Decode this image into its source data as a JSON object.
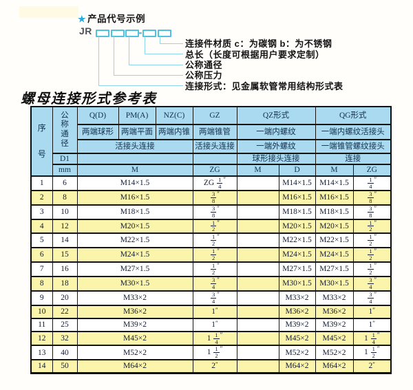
{
  "diagram": {
    "star": "★",
    "title": "产品代号示例",
    "prefix": "JR",
    "labels": [
      "连接件材质  c：为碳钢  b：为不锈钢",
      "总长（长度可根据用户要求定制）",
      "公称通径",
      "公称压力",
      "连接形式：见金属软管常用结构形式表"
    ]
  },
  "table_title": "螺母连接形式参考表",
  "table": {
    "header": {
      "seq": "序号",
      "dn": "公称通径",
      "d1": "D1",
      "mm": "mm",
      "q": "Q(D)",
      "q_sub": "两端球形",
      "pm": "PM(A)",
      "pm_sub": "两端平面",
      "nz": "NZ(C)",
      "nz_sub": "两端内锥",
      "group_qpmnz_row3": "活接头连接",
      "gz": "GZ",
      "gz_sub": "两端锥管",
      "gz_row3": "活接头连接",
      "qz": "QZ形式",
      "qz_sub": "一端内螺纹",
      "qz_row3": "一端外螺纹",
      "qz_row4": "球形接头连接",
      "qg": "QG形式",
      "qg_sub": "一端内螺纹活接头",
      "qg_row3": "一端锥管螺纹接头",
      "qg_row4": "连接",
      "m1": "M",
      "zg1": "ZG",
      "m2": "M",
      "d2": "D",
      "m3": "M",
      "zg2": "ZG"
    },
    "rows": [
      {
        "seq": "1",
        "mm": "6",
        "m": "M14×1.5",
        "zg": "ZG 1/4″",
        "qz_m": "",
        "qz_d": "M14×1.5",
        "qg_m": "M14×1.5",
        "qg_zg": "1/4″"
      },
      {
        "seq": "2",
        "mm": "8",
        "m": "M16×1.5",
        "zg": "3/8″",
        "qz_m": "",
        "qz_d": "M16×1.5",
        "qg_m": "M16×1.5",
        "qg_zg": "3/8″"
      },
      {
        "seq": "3",
        "mm": "10",
        "m": "M18×1.5",
        "zg": "3/8″",
        "qz_m": "",
        "qz_d": "M18×1.5",
        "qg_m": "M18×1.5",
        "qg_zg": "3/8″"
      },
      {
        "seq": "4",
        "mm": "12",
        "m": "M20×1.5",
        "zg": "1/2″",
        "qz_m": "",
        "qz_d": "M20×1.5",
        "qg_m": "M20×1.5",
        "qg_zg": "1/2″"
      },
      {
        "seq": "5",
        "mm": "14",
        "m": "M22×1.5",
        "zg": "1/2″",
        "qz_m": "",
        "qz_d": "M22×1.5",
        "qg_m": "M22×1.5",
        "qg_zg": "1/2″"
      },
      {
        "seq": "6",
        "mm": "15",
        "m": "M24×1.5",
        "zg": "1/2″",
        "qz_m": "",
        "qz_d": "M24×1.5",
        "qg_m": "M24×1.5",
        "qg_zg": "1/2″"
      },
      {
        "seq": "7",
        "mm": "16",
        "m": "M27×1.5",
        "zg": "1/2″",
        "qz_m": "",
        "qz_d": "M27×1.5",
        "qg_m": "M27×1.5",
        "qg_zg": "1/2″"
      },
      {
        "seq": "8",
        "mm": "18",
        "m": "M30×1.5",
        "zg": "3/4″",
        "qz_m": "",
        "qz_d": "M30×1.5",
        "qg_m": "M30×1.5",
        "qg_zg": "3/4″"
      },
      {
        "seq": "9",
        "mm": "20",
        "m": "M33×2",
        "zg": "3/4″",
        "qz_m": "",
        "qz_d": "M33×2",
        "qg_m": "M33×2",
        "qg_zg": "3/4″"
      },
      {
        "seq": "10",
        "mm": "22",
        "m": "M36×2",
        "zg": "1″",
        "qz_m": "",
        "qz_d": "M36×2",
        "qg_m": "M36×2",
        "qg_zg": "1″"
      },
      {
        "seq": "11",
        "mm": "25",
        "m": "M39×2",
        "zg": "1″",
        "qz_m": "",
        "qz_d": "M39×2",
        "qg_m": "M39×2",
        "qg_zg": "1″"
      },
      {
        "seq": "12",
        "mm": "32",
        "m": "M45×2",
        "zg": "1 1/4″",
        "qz_m": "",
        "qz_d": "M45×2",
        "qg_m": "M45×2",
        "qg_zg": "1 1/4″"
      },
      {
        "seq": "13",
        "mm": "40",
        "m": "M52×2",
        "zg": "1 1/2″",
        "qz_m": "",
        "qz_d": "M52×2",
        "qg_m": "M52×2",
        "qg_zg": "1 1/2″"
      },
      {
        "seq": "14",
        "mm": "50",
        "m": "M64×2",
        "zg": "2″",
        "qz_m": "",
        "qz_d": "M64×2",
        "qg_m": "M64×2",
        "qg_zg": "2″"
      }
    ]
  },
  "colors": {
    "header_blue": "#a9daef",
    "row_yellow": "#fbf5ab",
    "diagram_cyan": "#4fc2e2",
    "line_cyan": "#8ed7ea",
    "star_blue": "#2aabdc"
  }
}
